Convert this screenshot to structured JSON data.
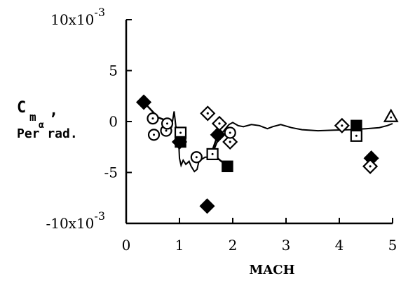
{
  "chart_data": {
    "type": "scatter",
    "xlabel": "MACH",
    "ylabel_line1": "C",
    "ylabel_sub": "m",
    "ylabel_subsub": "α",
    "ylabel_comma": ",",
    "ylabel_line2": "Per rad.",
    "xlim": [
      0,
      5
    ],
    "ylim": [
      -10,
      10
    ],
    "y_units": "x10^-3 per rad",
    "x_ticks": [
      {
        "value": 0,
        "label": "0"
      },
      {
        "value": 1,
        "label": "1"
      },
      {
        "value": 2,
        "label": "2"
      },
      {
        "value": 3,
        "label": "3"
      },
      {
        "value": 4,
        "label": "4"
      },
      {
        "value": 5,
        "label": "5"
      }
    ],
    "y_ticks": [
      {
        "value": 10,
        "label": "10x10",
        "exp": "-3"
      },
      {
        "value": 5,
        "label": "5"
      },
      {
        "value": 0,
        "label": "0"
      },
      {
        "value": -5,
        "label": "-5"
      },
      {
        "value": -10,
        "label": "-10x10",
        "exp": "-3"
      }
    ],
    "curve": [
      [
        0.85,
        -0.6
      ],
      [
        0.9,
        1.0
      ],
      [
        0.93,
        -0.4
      ],
      [
        0.96,
        -1.2
      ],
      [
        0.99,
        -2.4
      ],
      [
        1.0,
        -3.6
      ],
      [
        1.03,
        -4.3
      ],
      [
        1.07,
        -3.8
      ],
      [
        1.12,
        -4.2
      ],
      [
        1.18,
        -3.9
      ],
      [
        1.22,
        -4.4
      ],
      [
        1.28,
        -4.9
      ],
      [
        1.33,
        -4.7
      ],
      [
        1.36,
        -4.0
      ],
      [
        1.42,
        -3.7
      ],
      [
        1.48,
        -3.5
      ],
      [
        1.56,
        -3.5
      ],
      [
        1.63,
        -3.0
      ],
      [
        1.7,
        -2.1
      ],
      [
        1.76,
        -1.5
      ],
      [
        1.82,
        -1.0
      ],
      [
        1.88,
        -0.6
      ],
      [
        1.93,
        -0.3
      ],
      [
        2.0,
        -0.1
      ],
      [
        2.1,
        -0.4
      ],
      [
        2.2,
        -0.5
      ],
      [
        2.35,
        -0.3
      ],
      [
        2.5,
        -0.4
      ],
      [
        2.65,
        -0.7
      ],
      [
        2.75,
        -0.5
      ],
      [
        2.9,
        -0.3
      ],
      [
        3.1,
        -0.6
      ],
      [
        3.3,
        -0.8
      ],
      [
        3.6,
        -0.9
      ],
      [
        3.9,
        -0.85
      ],
      [
        4.2,
        -0.8
      ],
      [
        4.5,
        -0.7
      ],
      [
        4.75,
        -0.6
      ],
      [
        4.9,
        -0.4
      ],
      [
        5.0,
        -0.2
      ]
    ],
    "segments": [
      [
        [
          0.33,
          1.9
        ],
        [
          0.6,
          0.4
        ],
        [
          0.75,
          0.1
        ]
      ],
      [
        [
          1.6,
          -3.1
        ],
        [
          1.72,
          -1.3
        ],
        [
          1.8,
          -0.9
        ]
      ],
      [
        [
          1.6,
          -3.1
        ],
        [
          1.9,
          -4.4
        ]
      ],
      [
        [
          4.58,
          -3.6
        ],
        [
          4.62,
          -4.4
        ]
      ]
    ],
    "series": [
      {
        "marker": "filled-diamond",
        "points": [
          [
            0.33,
            1.9
          ],
          [
            1.0,
            -2.0
          ],
          [
            1.52,
            -8.3
          ],
          [
            1.72,
            -1.3
          ],
          [
            4.6,
            -3.6
          ]
        ]
      },
      {
        "marker": "open-diamond-dot",
        "points": [
          [
            1.53,
            0.8
          ],
          [
            1.75,
            -0.2
          ],
          [
            1.95,
            -2.0
          ],
          [
            4.05,
            -0.4
          ],
          [
            4.58,
            -4.4
          ]
        ]
      },
      {
        "marker": "open-circle-dot",
        "points": [
          [
            0.5,
            0.3
          ],
          [
            0.52,
            -1.3
          ],
          [
            0.75,
            -0.9
          ],
          [
            0.77,
            -0.2
          ],
          [
            1.32,
            -3.5
          ],
          [
            1.95,
            -1.1
          ]
        ]
      },
      {
        "marker": "open-square-dot",
        "points": [
          [
            1.02,
            -1.1
          ],
          [
            1.62,
            -3.2
          ],
          [
            4.32,
            -1.4
          ]
        ]
      },
      {
        "marker": "filled-square",
        "points": [
          [
            1.02,
            -2.0
          ],
          [
            1.9,
            -4.4
          ],
          [
            4.32,
            -0.4
          ]
        ]
      },
      {
        "marker": "open-triangle",
        "points": [
          [
            4.97,
            0.5
          ]
        ]
      }
    ]
  }
}
